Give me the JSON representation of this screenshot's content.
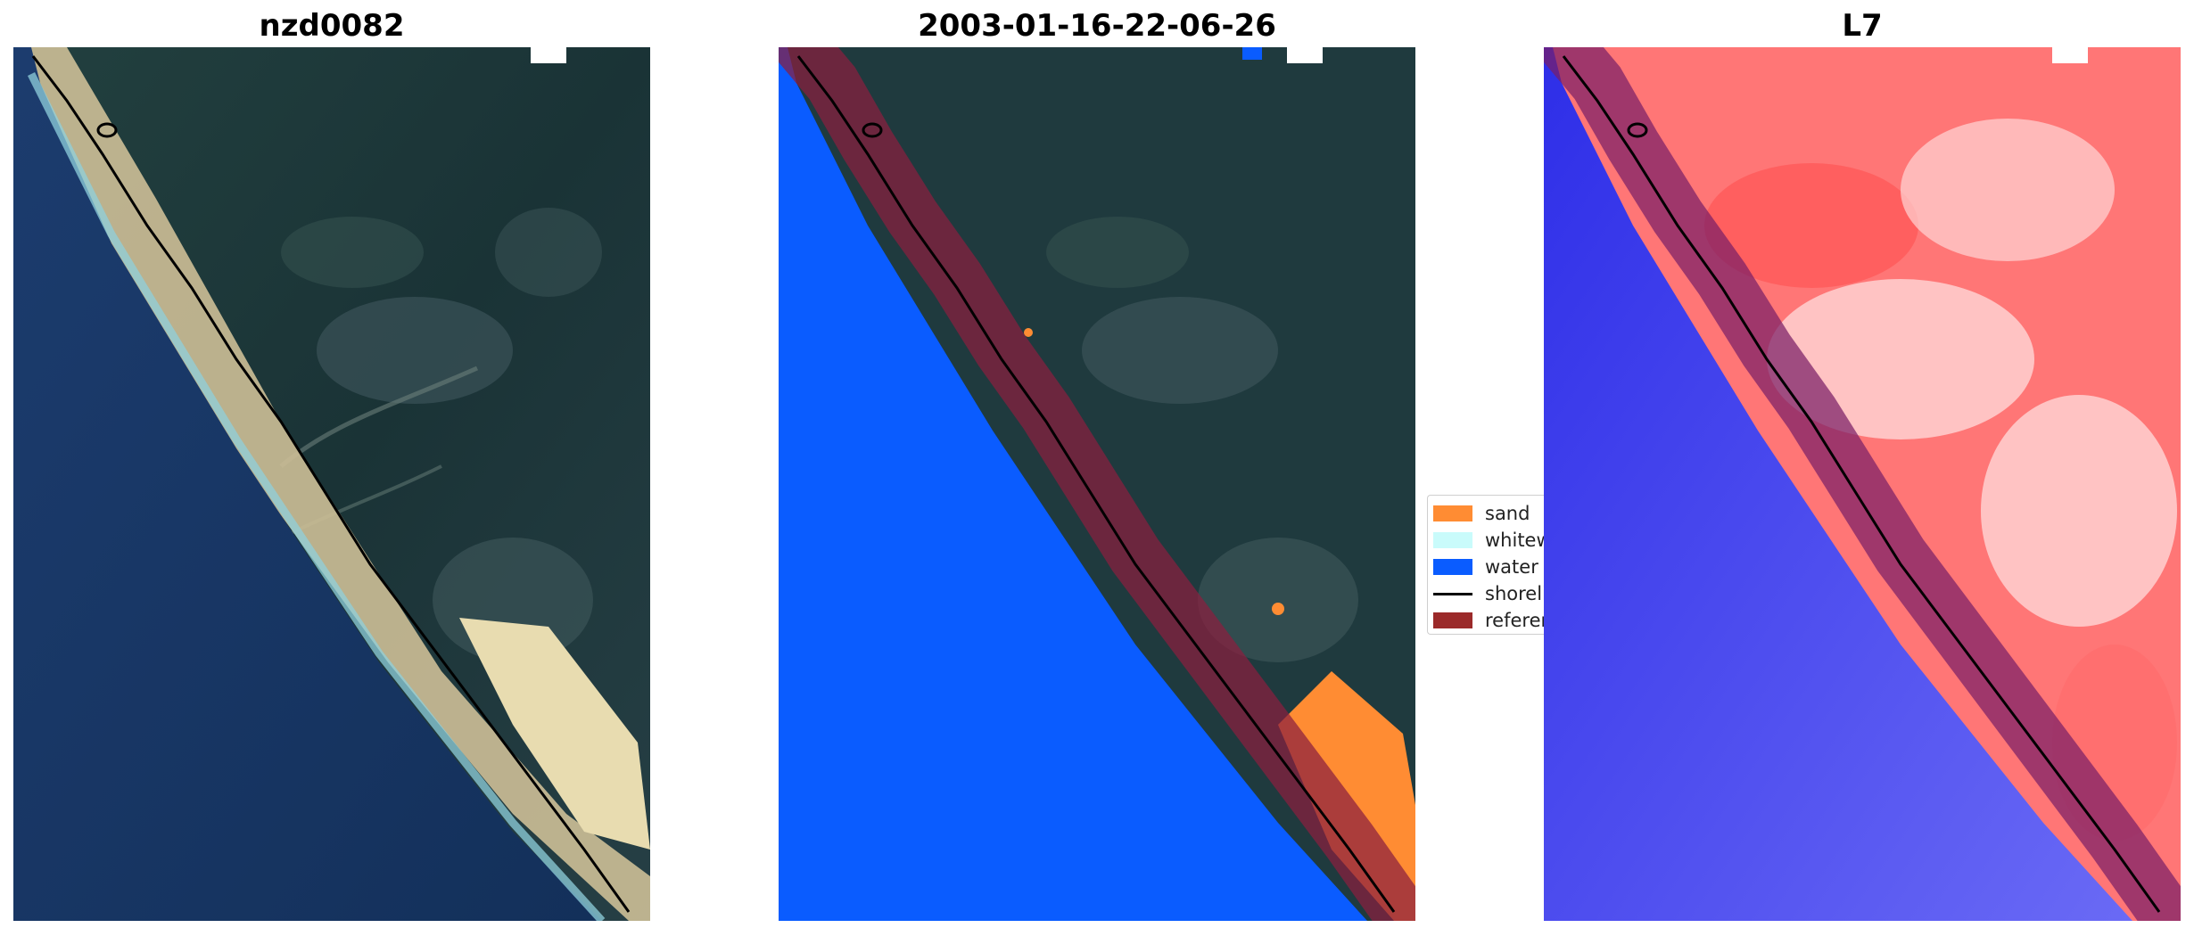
{
  "panels": [
    {
      "title": "nzd0082"
    },
    {
      "title": "2003-01-16-22-06-26"
    },
    {
      "title": "L7"
    }
  ],
  "legend": {
    "items": [
      {
        "label": "sand",
        "color": "#ff8c33",
        "kind": "patch"
      },
      {
        "label": "whitewater",
        "color": "#c9fbfb",
        "kind": "patch"
      },
      {
        "label": "water",
        "color": "#0a5cff",
        "kind": "patch"
      },
      {
        "label": "shoreline",
        "color": "#000000",
        "kind": "line"
      },
      {
        "label": "reference shoreline buffer",
        "color": "#9b2a2a",
        "kind": "patch"
      }
    ]
  },
  "colors": {
    "ocean": "#16325e",
    "forest": "#1f3a3e",
    "sand": "#e8dcb0",
    "surf": "#8fd0dc",
    "class_water": "#0a5cff",
    "class_sand": "#ff8c33",
    "buffer": "#8b1e3f",
    "mndwi_land": "#ff6a6a",
    "mndwi_water": "#3a3af0"
  }
}
